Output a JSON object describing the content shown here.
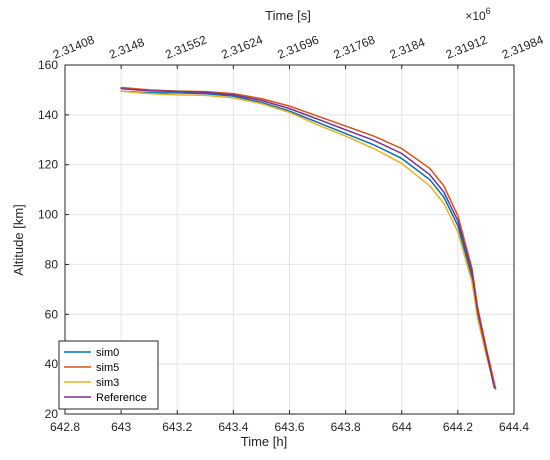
{
  "chart_data": {
    "type": "line",
    "xlabel": "Time [h]",
    "ylabel": "Altitude [km]",
    "top_xlabel": "Time [s]",
    "top_exponent": "×10",
    "top_exponent_power": "6",
    "xlim": [
      642.8,
      644.4
    ],
    "ylim": [
      20,
      160
    ],
    "x_ticks": [
      "642.8",
      "643",
      "643.2",
      "643.4",
      "643.6",
      "643.8",
      "644",
      "644.2",
      "644.4"
    ],
    "y_ticks": [
      "20",
      "40",
      "60",
      "80",
      "100",
      "120",
      "140",
      "160"
    ],
    "top_ticks": [
      "2.31408",
      "2.3148",
      "2.31552",
      "2.31624",
      "2.31696",
      "2.31768",
      "2.3184",
      "2.31912",
      "2.31984"
    ],
    "grid": true,
    "legend_position": "bottom-left",
    "series": [
      {
        "name": "sim0",
        "color": "#0072BD",
        "x": [
          643.0,
          643.1,
          643.2,
          643.3,
          643.4,
          643.5,
          643.6,
          643.7,
          643.8,
          643.9,
          644.0,
          644.1,
          644.15,
          644.2,
          644.25,
          644.27,
          644.3,
          644.33
        ],
        "y": [
          149.5,
          148.8,
          148.8,
          148.5,
          147.5,
          145.0,
          141.5,
          137.0,
          132.5,
          128.0,
          122.5,
          114.0,
          107.0,
          95.5,
          75.0,
          60.0,
          45.0,
          30.5
        ]
      },
      {
        "name": "sim5",
        "color": "#D95319",
        "x": [
          643.0,
          643.1,
          643.2,
          643.3,
          643.4,
          643.5,
          643.6,
          643.7,
          643.8,
          643.9,
          644.0,
          644.1,
          644.15,
          644.2,
          644.25,
          644.27,
          644.3,
          644.335
        ],
        "y": [
          151.0,
          150.0,
          149.5,
          149.3,
          148.5,
          146.5,
          143.5,
          139.5,
          135.5,
          131.5,
          126.5,
          118.5,
          111.5,
          99.5,
          78.5,
          63.0,
          47.0,
          30.0
        ]
      },
      {
        "name": "sim3",
        "color": "#EDB120",
        "x": [
          643.0,
          643.1,
          643.2,
          643.3,
          643.4,
          643.5,
          643.6,
          643.7,
          643.8,
          643.9,
          644.0,
          644.1,
          644.15,
          644.2,
          644.25,
          644.27,
          644.3,
          644.33
        ],
        "y": [
          149.5,
          148.5,
          148.0,
          147.8,
          146.8,
          144.5,
          141.0,
          136.0,
          131.5,
          126.5,
          120.5,
          111.5,
          104.5,
          93.0,
          73.0,
          58.5,
          44.0,
          31.0
        ]
      },
      {
        "name": "Reference",
        "color": "#7E2F8E",
        "x": [
          643.0,
          643.1,
          643.2,
          643.3,
          643.4,
          643.5,
          643.6,
          643.7,
          643.8,
          643.9,
          644.0,
          644.1,
          644.15,
          644.2,
          644.25,
          644.27,
          644.3,
          644.33
        ],
        "y": [
          150.5,
          149.6,
          149.4,
          149.0,
          148.0,
          145.8,
          142.5,
          138.3,
          134.0,
          129.8,
          124.5,
          116.0,
          109.0,
          97.5,
          77.0,
          61.5,
          46.0,
          30.5
        ]
      }
    ]
  }
}
